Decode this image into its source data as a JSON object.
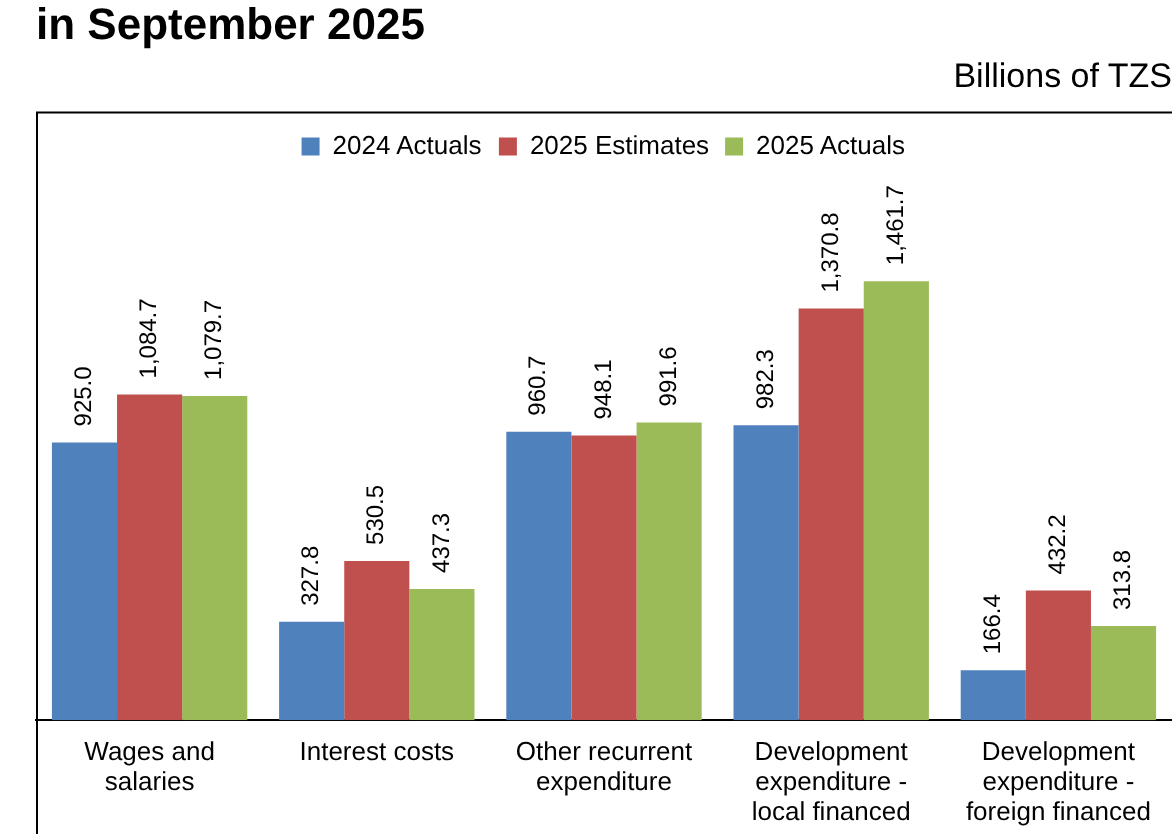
{
  "chart_data": {
    "type": "bar",
    "title": "in September 2025",
    "subtitle": "Billions of TZS",
    "categories": [
      "Wages and salaries",
      "Interest costs",
      "Other recurrent expenditure",
      "Development expenditure - local financed",
      "Development expenditure - foreign financed"
    ],
    "series": [
      {
        "name": "2024 Actuals",
        "color": "#4f81bd",
        "values": [
          925.0,
          327.8,
          960.7,
          982.3,
          166.4
        ],
        "value_labels": [
          "925.0",
          "327.8",
          "960.7",
          "982.3",
          "166.4"
        ]
      },
      {
        "name": "2025 Estimates",
        "color": "#c0504d",
        "values": [
          1084.7,
          530.5,
          948.1,
          1370.8,
          432.2
        ],
        "value_labels": [
          "1,084.7",
          "530.5",
          "948.1",
          "1,370.8",
          "432.2"
        ]
      },
      {
        "name": "2025 Actuals",
        "color": "#9bbb59",
        "values": [
          1079.7,
          437.3,
          991.6,
          1461.7,
          313.8
        ],
        "value_labels": [
          "1,079.7",
          "437.3",
          "991.6",
          "1,461.7",
          "313.8"
        ]
      }
    ],
    "tick_labels": "x",
    "grid": false,
    "legend": "top"
  }
}
